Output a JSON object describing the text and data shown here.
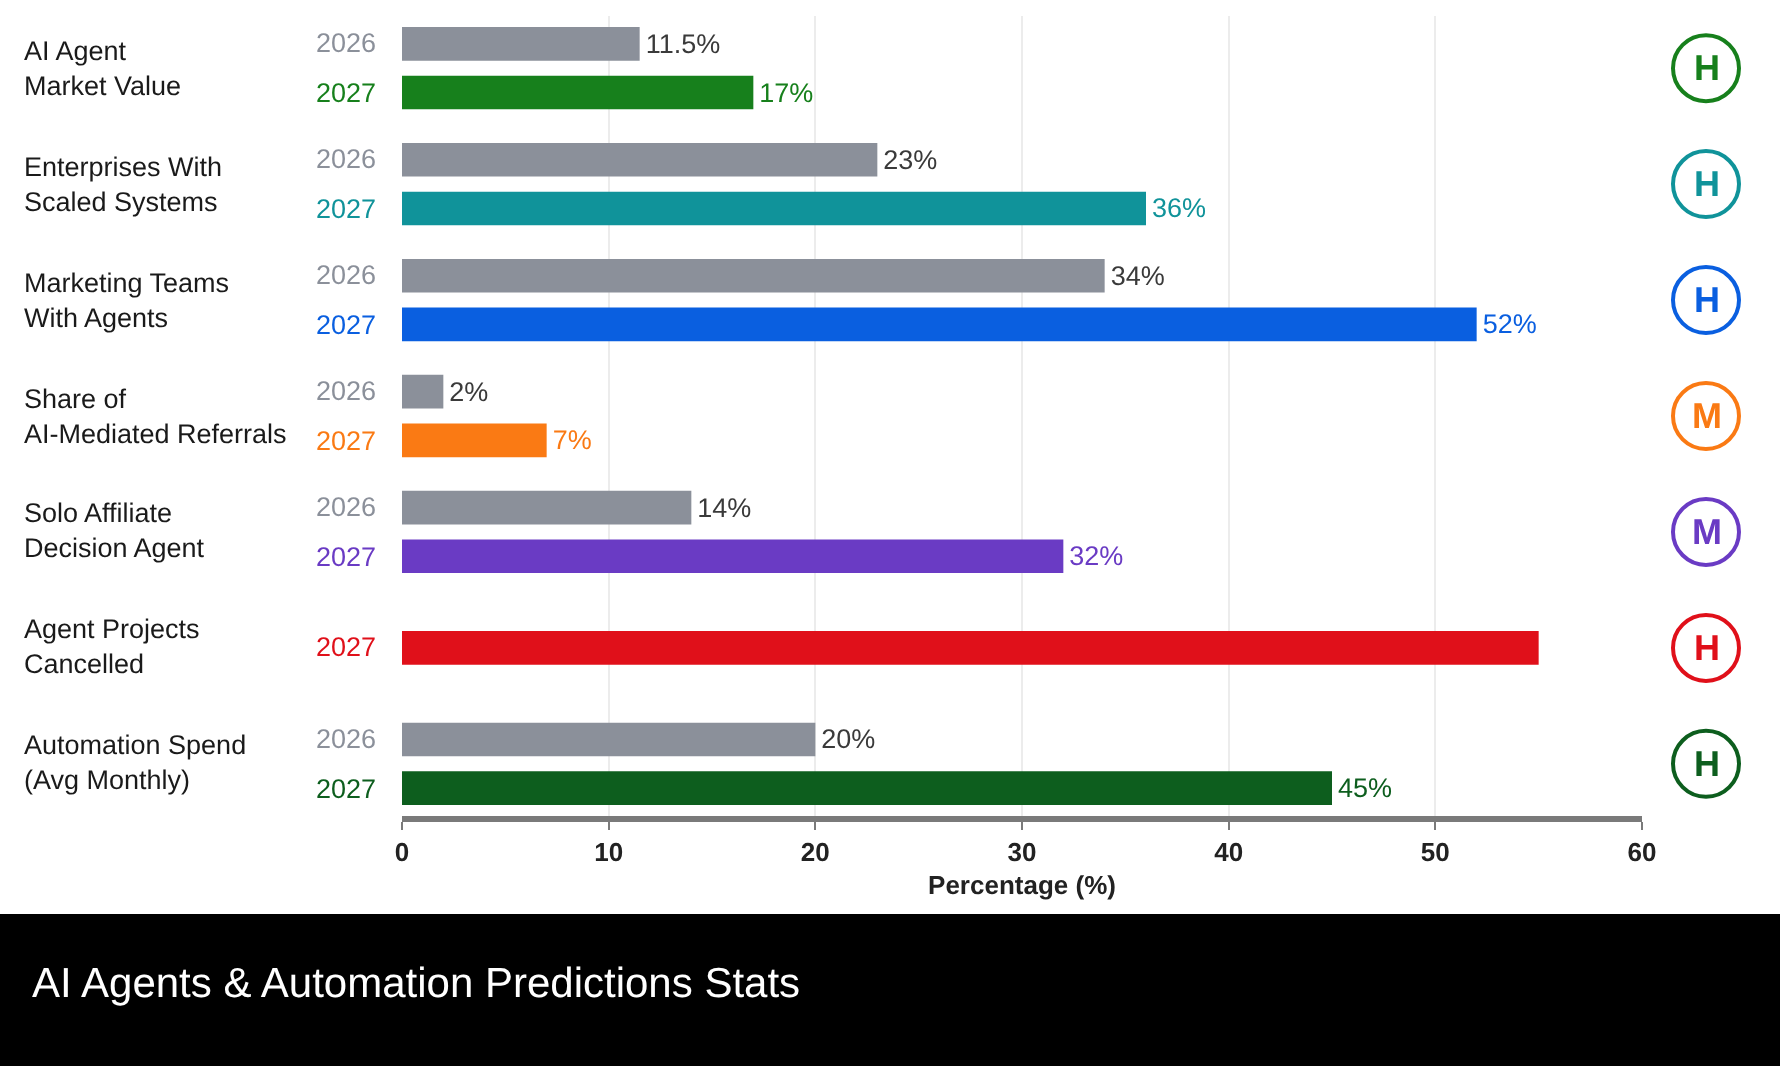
{
  "chart_data": {
    "type": "bar",
    "orientation": "horizontal",
    "title": "AI Agents & Automation Predictions Stats",
    "xlabel": "Percentage (%)",
    "categories": [
      "AI Agent\nMarket Value",
      "Enterprises With\nScaled Systems",
      "Marketing Teams\nWith Agents",
      "Share of\nAI-Mediated Referrals",
      "Solo Affiliate\nDecision Agent",
      "Agent Projects\nCancelled",
      "Automation Spend\n(Avg Monthly)"
    ],
    "series": [
      {
        "name": "2026",
        "color": "#8b909a",
        "values": [
          11.5,
          23,
          34,
          2,
          14,
          null,
          20
        ],
        "value_labels": [
          "11.5%",
          "23%",
          "34%",
          "2%",
          "14%",
          null,
          "20%"
        ]
      },
      {
        "name": "2027",
        "colors": [
          "#17801c",
          "#10939a",
          "#0a5fe0",
          "#fa7a14",
          "#6a3bc4",
          "#e0101a",
          "#0d5e1e"
        ],
        "values": [
          17,
          36,
          52,
          7,
          32,
          55,
          45
        ],
        "value_labels": [
          "17%",
          "36%",
          "52%",
          "7%",
          "32%",
          null,
          "45%"
        ]
      }
    ],
    "xlim": [
      0,
      60
    ],
    "xticks": [
      0,
      10,
      20,
      30,
      40,
      50,
      60
    ],
    "grid": "x",
    "annotations": [
      "H",
      "H",
      "H",
      "M",
      "M",
      "H",
      "H"
    ]
  }
}
